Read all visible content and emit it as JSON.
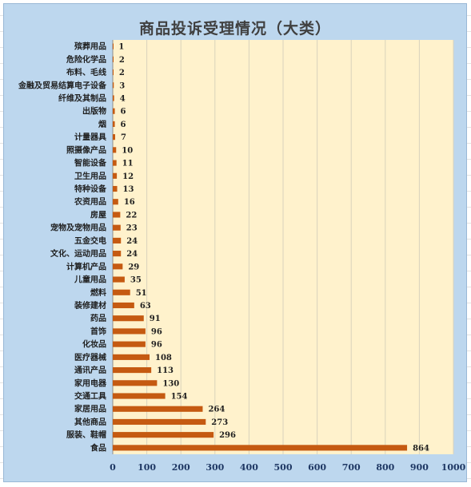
{
  "chart_data": {
    "type": "bar",
    "orientation": "horizontal",
    "title": "商品投诉受理情况（大类）",
    "xlim": [
      0,
      1000
    ],
    "xticks": [
      0,
      100,
      200,
      300,
      400,
      500,
      600,
      700,
      800,
      900,
      1000
    ],
    "grid": "vertical",
    "legend": "none",
    "bar_color": "#c55a11",
    "plot_bg_color": "#fff2cc",
    "frame_bg_color": "#bdd7ee",
    "categories": [
      "殡葬用品",
      "危险化学品",
      "布料、毛线",
      "金融及贸易结算电子设备",
      "纤维及其制品",
      "出版物",
      "烟",
      "计量器具",
      "照摄像产品",
      "智能设备",
      "卫生用品",
      "特种设备",
      "农资用品",
      "房屋",
      "宠物及宠物用品",
      "五金交电",
      "文化、运动用品",
      "计算机产品",
      "儿童用品",
      "燃料",
      "装修建材",
      "药品",
      "首饰",
      "化妆品",
      "医疗器械",
      "通讯产品",
      "家用电器",
      "交通工具",
      "家居用品",
      "其他商品",
      "服装、鞋帽",
      "食品"
    ],
    "values": [
      1,
      2,
      2,
      3,
      4,
      6,
      6,
      7,
      10,
      11,
      12,
      13,
      16,
      22,
      23,
      24,
      24,
      29,
      35,
      51,
      63,
      91,
      96,
      96,
      108,
      113,
      130,
      154,
      264,
      273,
      296,
      864
    ]
  }
}
